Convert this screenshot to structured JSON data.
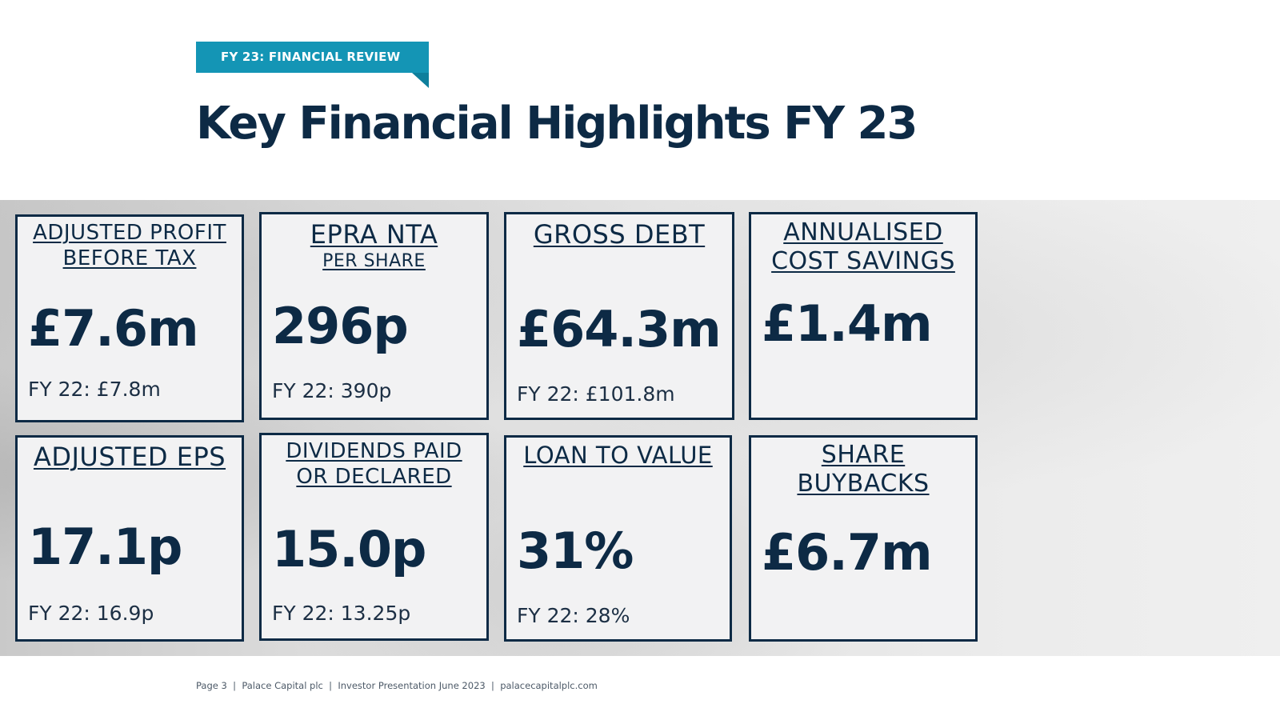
{
  "section_tag": "FY 23: FINANCIAL REVIEW",
  "title": "Key Financial Highlights FY 23",
  "cards": [
    {
      "label_line1": "ADJUSTED PROFIT",
      "label_line2": "BEFORE TAX",
      "value": "£7.6m",
      "prior": "FY 22: £7.8m"
    },
    {
      "label_line1": "EPRA NTA",
      "label_line2": "PER SHARE",
      "value": "296p",
      "prior": "FY 22: 390p"
    },
    {
      "label_line1": "GROSS DEBT",
      "value": "£64.3m",
      "prior": "FY 22: £101.8m"
    },
    {
      "label_line1": "ANNUALISED",
      "label_line2": "COST SAVINGS",
      "value": "£1.4m"
    },
    {
      "label_line1": "ADJUSTED EPS",
      "value": "17.1p",
      "prior": "FY 22: 16.9p"
    },
    {
      "label_line1": "DIVIDENDS PAID",
      "label_line2": "OR DECLARED",
      "value": "15.0p",
      "prior": "FY 22: 13.25p"
    },
    {
      "label_line1": "LOAN TO VALUE",
      "value": "31%",
      "prior": "FY 22: 28%"
    },
    {
      "label_line1": "SHARE",
      "label_line2": "BUYBACKS",
      "value": "£6.7m"
    }
  ],
  "footer": {
    "page": "Page 3",
    "company": "Palace Capital plc",
    "presentation": "Investor Presentation June 2023",
    "website": "palacecapitalplc.com"
  }
}
